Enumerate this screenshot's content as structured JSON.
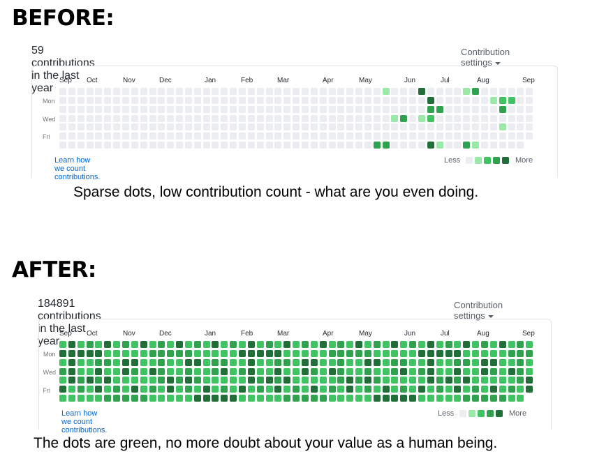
{
  "before": {
    "heading": "BEFORE:",
    "count_text": "59 contributions in the last year",
    "settings_label": "Contribution settings",
    "months": [
      "Sep",
      "Oct",
      "Nov",
      "Dec",
      "Jan",
      "Feb",
      "Mar",
      "Apr",
      "May",
      "Jun",
      "Jul",
      "Aug",
      "Sep"
    ],
    "days": [
      "Mon",
      "Wed",
      "Fri"
    ],
    "learn_link": "Learn how we count contributions.",
    "legend_less": "Less",
    "legend_more": "More",
    "caption": "Sparse dots, low contribution count - what are you even doing."
  },
  "after": {
    "heading": "AFTER:",
    "count_text": "184891 contributions in the last year",
    "settings_label": "Contribution settings",
    "months": [
      "Sep",
      "Oct",
      "Nov",
      "Dec",
      "Jan",
      "Feb",
      "Mar",
      "Apr",
      "May",
      "Jun",
      "Jul",
      "Aug",
      "Sep"
    ],
    "days": [
      "Mon",
      "Wed",
      "Fri"
    ],
    "learn_link": "Learn how we count contributions.",
    "legend_less": "Less",
    "legend_more": "More",
    "caption": "The dots are green, no more doubt about your value as a human being."
  },
  "colors": {
    "level0": "#ebedf0",
    "level1": "#9be9a8",
    "level2": "#40c463",
    "level3": "#30a14e",
    "level4": "#216e39"
  },
  "before_active_cells": [
    {
      "week": 36,
      "day": 0,
      "level": 1
    },
    {
      "week": 37,
      "day": 3,
      "level": 1
    },
    {
      "week": 40,
      "day": 0,
      "level": 4
    },
    {
      "week": 41,
      "day": 1,
      "level": 4
    },
    {
      "week": 41,
      "day": 2,
      "level": 3
    },
    {
      "week": 42,
      "day": 2,
      "level": 3
    },
    {
      "week": 38,
      "day": 3,
      "level": 3
    },
    {
      "week": 40,
      "day": 3,
      "level": 1
    },
    {
      "week": 41,
      "day": 3,
      "level": 2
    },
    {
      "week": 35,
      "day": 6,
      "level": 3
    },
    {
      "week": 36,
      "day": 6,
      "level": 3
    },
    {
      "week": 41,
      "day": 6,
      "level": 4
    },
    {
      "week": 42,
      "day": 6,
      "level": 1
    },
    {
      "week": 45,
      "day": 0,
      "level": 1
    },
    {
      "week": 46,
      "day": 0,
      "level": 3
    },
    {
      "week": 45,
      "day": 6,
      "level": 3
    },
    {
      "week": 46,
      "day": 6,
      "level": 1
    },
    {
      "week": 48,
      "day": 1,
      "level": 1
    },
    {
      "week": 49,
      "day": 2,
      "level": 3
    },
    {
      "week": 49,
      "day": 1,
      "level": 2
    },
    {
      "week": 50,
      "day": 1,
      "level": 2
    },
    {
      "week": 49,
      "day": 4,
      "level": 1
    }
  ]
}
